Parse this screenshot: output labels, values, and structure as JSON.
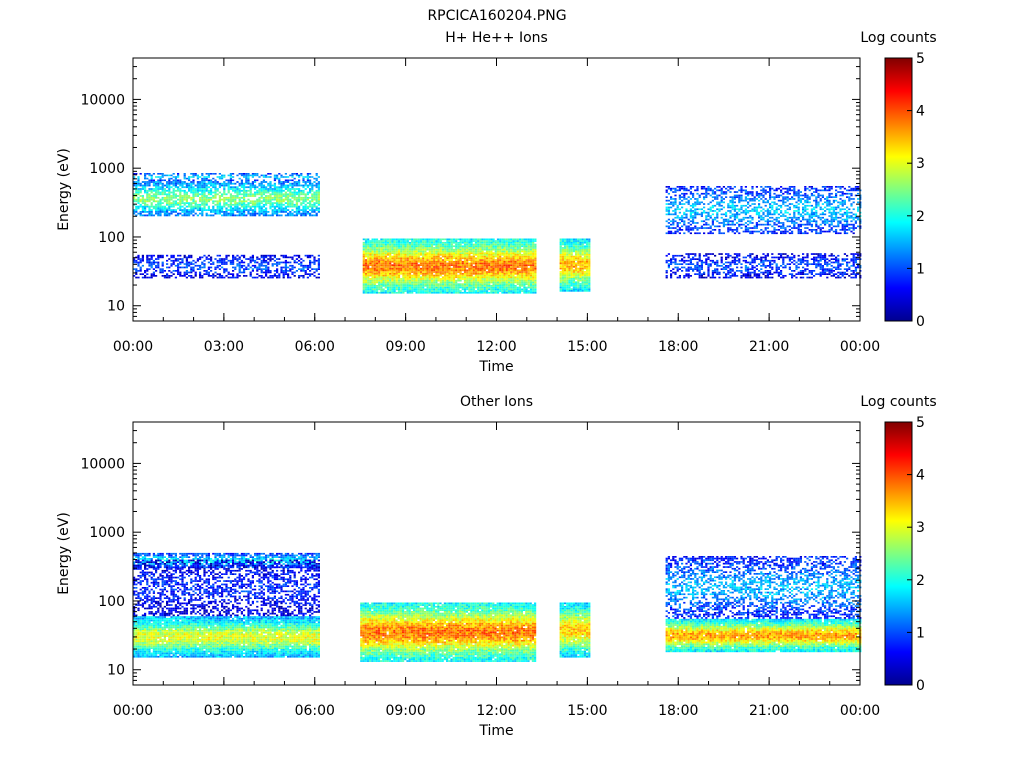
{
  "figure_title": "RPCICA160204.PNG",
  "chart_data": [
    {
      "type": "heatmap",
      "title": "H+ He++ Ions",
      "xlabel": "Time",
      "ylabel": "Energy (eV)",
      "y_scale": "log",
      "ylim": [
        6,
        40000
      ],
      "x_range": [
        "00:00",
        "00:00 (+24h)"
      ],
      "x_ticks": [
        "00:00",
        "03:00",
        "06:00",
        "09:00",
        "12:00",
        "15:00",
        "18:00",
        "21:00",
        "00:00"
      ],
      "y_ticks": [
        "10",
        "100",
        "1000",
        "10000"
      ],
      "colorbar": {
        "label": "Log counts",
        "range": [
          0,
          5
        ],
        "ticks": [
          "0",
          "1",
          "2",
          "3",
          "4",
          "5"
        ]
      },
      "data_intervals": [
        {
          "start": "00:00",
          "end": "06:10",
          "bands": [
            {
              "energy_range_eV": [
                25,
                55
              ],
              "log_counts": 1.0
            },
            {
              "energy_range_eV": [
                200,
                650
              ],
              "log_counts": 2.5
            },
            {
              "energy_range_eV": [
                650,
                850
              ],
              "log_counts": 1.7
            }
          ]
        },
        {
          "start": "07:35",
          "end": "13:15",
          "bands": [
            {
              "energy_range_eV": [
                15,
                95
              ],
              "log_counts": 3.8
            }
          ]
        },
        {
          "start": "14:05",
          "end": "15:05",
          "bands": [
            {
              "energy_range_eV": [
                16,
                95
              ],
              "log_counts": 3.5
            }
          ]
        },
        {
          "start": "17:35",
          "end": "24:00",
          "bands": [
            {
              "energy_range_eV": [
                25,
                58
              ],
              "log_counts": 1.0
            },
            {
              "energy_range_eV": [
                110,
                550
              ],
              "log_counts": 1.6
            }
          ]
        }
      ]
    },
    {
      "type": "heatmap",
      "title": "Other Ions",
      "xlabel": "Time",
      "ylabel": "Energy (eV)",
      "y_scale": "log",
      "ylim": [
        6,
        40000
      ],
      "x_range": [
        "00:00",
        "00:00 (+24h)"
      ],
      "x_ticks": [
        "00:00",
        "03:00",
        "06:00",
        "09:00",
        "12:00",
        "15:00",
        "18:00",
        "21:00",
        "00:00"
      ],
      "y_ticks": [
        "10",
        "100",
        "1000",
        "10000"
      ],
      "colorbar": {
        "label": "Log counts",
        "range": [
          0,
          5
        ],
        "ticks": [
          "0",
          "1",
          "2",
          "3",
          "4",
          "5"
        ]
      },
      "data_intervals": [
        {
          "start": "00:00",
          "end": "06:10",
          "bands": [
            {
              "energy_range_eV": [
                15,
                60
              ],
              "log_counts": 3.0
            },
            {
              "energy_range_eV": [
                300,
                500
              ],
              "log_counts": 1.8
            },
            {
              "energy_range_eV": [
                60,
                400
              ],
              "log_counts": 0.8
            }
          ]
        },
        {
          "start": "07:30",
          "end": "13:15",
          "bands": [
            {
              "energy_range_eV": [
                13,
                95
              ],
              "log_counts": 3.8
            }
          ]
        },
        {
          "start": "14:05",
          "end": "15:05",
          "bands": [
            {
              "energy_range_eV": [
                15,
                95
              ],
              "log_counts": 3.4
            }
          ]
        },
        {
          "start": "17:35",
          "end": "24:00",
          "bands": [
            {
              "energy_range_eV": [
                18,
                55
              ],
              "log_counts": 3.6
            },
            {
              "energy_range_eV": [
                55,
                450
              ],
              "log_counts": 1.5
            }
          ]
        }
      ]
    }
  ]
}
